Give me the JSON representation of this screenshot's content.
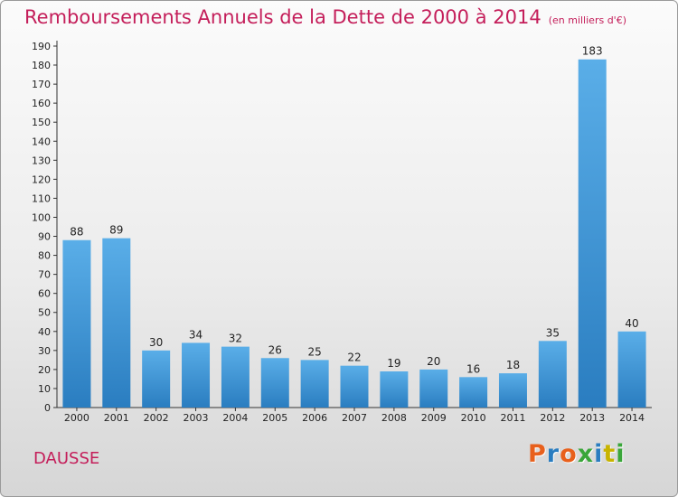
{
  "header": {
    "title": "Remboursements Annuels de la Dette de 2000 à 2014",
    "subtitle": "(en milliers d'€)"
  },
  "footer": {
    "commune": "DAUSSE",
    "logo_text": "Proxiti"
  },
  "colors": {
    "title": "#c41e5a",
    "bar_light": "#5aaee8",
    "bar_dark": "#2a7dc0",
    "logo": [
      "#e8601c",
      "#2a7dc0",
      "#e8601c",
      "#3aa63a",
      "#2a7dc0",
      "#c8b400",
      "#3aa63a"
    ]
  },
  "chart_data": {
    "type": "bar",
    "categories": [
      "2000",
      "2001",
      "2002",
      "2003",
      "2004",
      "2005",
      "2006",
      "2007",
      "2008",
      "2009",
      "2010",
      "2011",
      "2012",
      "2013",
      "2014"
    ],
    "values": [
      88,
      89,
      30,
      34,
      32,
      26,
      25,
      22,
      19,
      20,
      16,
      18,
      35,
      183,
      40
    ],
    "title": "Remboursements Annuels de la Dette de 2000 à 2014",
    "xlabel": "",
    "ylabel": "",
    "ylim": [
      0,
      190
    ],
    "yticks": [
      0,
      10,
      20,
      30,
      40,
      50,
      60,
      70,
      80,
      90,
      100,
      110,
      120,
      130,
      140,
      150,
      160,
      170,
      180,
      190
    ],
    "grid": false,
    "data_labels": true
  }
}
